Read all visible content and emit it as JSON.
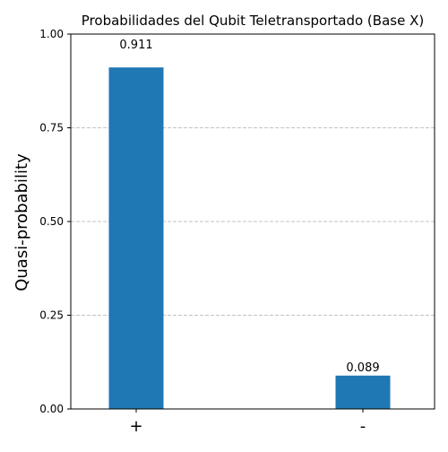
{
  "chart_data": {
    "type": "bar",
    "title": "Probabilidades del Qubit Teletransportado (Base X)",
    "xlabel": "",
    "ylabel": "Quasi-probability",
    "categories": [
      "+",
      "-"
    ],
    "values": [
      0.911,
      0.089
    ],
    "value_labels": [
      "0.911",
      "0.089"
    ],
    "ylim": [
      0,
      1.0
    ],
    "yticks": [
      0.0,
      0.25,
      0.5,
      0.75,
      1.0
    ],
    "ytick_labels": [
      "0.00",
      "0.25",
      "0.50",
      "0.75",
      "1.00"
    ],
    "grid": "horizontal dashed",
    "bar_color": "#1f77b4",
    "grid_color": "#b0b0b0"
  }
}
